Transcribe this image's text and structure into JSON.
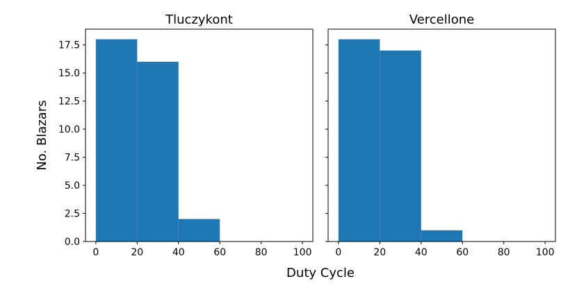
{
  "chart_data": {
    "type": "bar",
    "xlabel": "Duty Cycle",
    "ylabel": "No. Blazars",
    "xlim": [
      -5,
      105
    ],
    "ylim": [
      0,
      18.9
    ],
    "xticks": [
      "0",
      "20",
      "40",
      "60",
      "80",
      "100"
    ],
    "yticks": [
      "0.0",
      "2.5",
      "5.0",
      "7.5",
      "10.0",
      "12.5",
      "15.0",
      "17.5"
    ],
    "bin_edges": [
      0,
      20,
      40,
      60,
      80,
      100
    ],
    "color": "#1f77b4",
    "shared_y": true,
    "panels": [
      {
        "title": "Tluczykont",
        "values": [
          18,
          16,
          2,
          0,
          0
        ]
      },
      {
        "title": "Vercellone",
        "values": [
          18,
          17,
          1,
          0,
          0
        ]
      }
    ]
  }
}
